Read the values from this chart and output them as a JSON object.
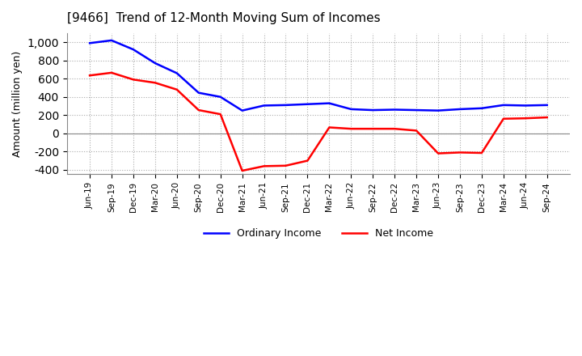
{
  "title": "[9466]  Trend of 12-Month Moving Sum of Incomes",
  "ylabel": "Amount (million yen)",
  "ylim": [
    -450,
    1100
  ],
  "yticks": [
    -400,
    -200,
    0,
    200,
    400,
    600,
    800,
    1000
  ],
  "ordinary_income_color": "#0000ff",
  "net_income_color": "#ff0000",
  "background_color": "#ffffff",
  "grid_color": "#aaaaaa",
  "x_labels": [
    "Jun-19",
    "Sep-19",
    "Dec-19",
    "Mar-20",
    "Jun-20",
    "Sep-20",
    "Dec-20",
    "Mar-21",
    "Jun-21",
    "Sep-21",
    "Dec-21",
    "Mar-22",
    "Jun-22",
    "Sep-22",
    "Dec-22",
    "Mar-23",
    "Jun-23",
    "Sep-23",
    "Dec-23",
    "Mar-24",
    "Jun-24",
    "Sep-24"
  ],
  "ordinary_income": [
    990,
    1020,
    920,
    770,
    660,
    445,
    400,
    250,
    305,
    310,
    320,
    330,
    265,
    255,
    260,
    255,
    250,
    265,
    275,
    310,
    305,
    310
  ],
  "net_income": [
    635,
    665,
    590,
    555,
    480,
    255,
    210,
    -410,
    -360,
    -355,
    -300,
    65,
    50,
    50,
    50,
    30,
    -220,
    -210,
    -215,
    160,
    165,
    175
  ],
  "legend_labels": [
    "Ordinary Income",
    "Net Income"
  ]
}
